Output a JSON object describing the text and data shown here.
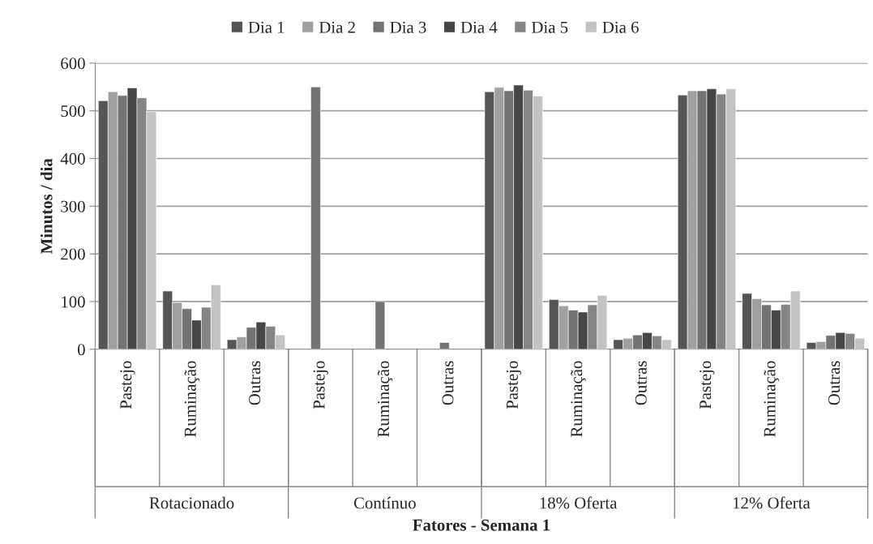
{
  "chart_data": {
    "type": "bar",
    "xlabel": "Fatores - Semana 1",
    "ylabel": "Minutos / dia",
    "categories": [
      "Pastejo",
      "Ruminação",
      "Outras",
      "Pastejo",
      "Ruminação",
      "Outras",
      "Pastejo",
      "Ruminação",
      "Outras",
      "Pastejo",
      "Ruminação",
      "Outras"
    ],
    "annotations": [
      "Rotacionado",
      "Contínuo",
      "18% Oferta",
      "12% Oferta"
    ],
    "series": [
      {
        "name": "Dia 1",
        "color": "#555555",
        "values": [
          521,
          122,
          20,
          null,
          null,
          null,
          540,
          104,
          20,
          533,
          117,
          14
        ]
      },
      {
        "name": "Dia 2",
        "color": "#a0a0a0",
        "values": [
          540,
          98,
          26,
          null,
          null,
          null,
          549,
          91,
          23,
          542,
          106,
          16
        ]
      },
      {
        "name": "Dia 3",
        "color": "#737373",
        "values": [
          532,
          85,
          46,
          550,
          100,
          14,
          542,
          82,
          30,
          542,
          93,
          29
        ]
      },
      {
        "name": "Dia 4",
        "color": "#464646",
        "values": [
          548,
          61,
          57,
          null,
          null,
          null,
          554,
          78,
          35,
          546,
          82,
          35
        ]
      },
      {
        "name": "Dia 5",
        "color": "#858585",
        "values": [
          527,
          88,
          48,
          null,
          null,
          null,
          543,
          93,
          28,
          535,
          94,
          33
        ]
      },
      {
        "name": "Dia 6",
        "color": "#c3c3c3",
        "values": [
          498,
          135,
          30,
          null,
          null,
          null,
          531,
          113,
          20,
          546,
          122,
          23
        ]
      }
    ],
    "ylim": [
      0,
      600
    ],
    "yticks": [
      0,
      100,
      200,
      300,
      400,
      500,
      600
    ],
    "grid": "y",
    "legend": "top"
  }
}
